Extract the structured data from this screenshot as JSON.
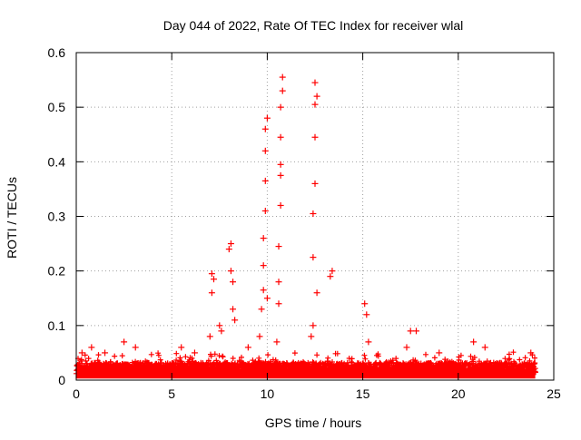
{
  "chart_data": {
    "type": "scatter",
    "title": "Day 044 of 2022, Rate Of TEC Index for receiver wlal",
    "xlabel": "GPS time / hours",
    "ylabel": "ROTI / TECUs",
    "xlim": [
      0,
      25
    ],
    "ylim": [
      0,
      0.6
    ],
    "x_ticks": [
      0,
      5,
      10,
      15,
      20,
      25
    ],
    "x_tick_labels": [
      "0",
      "5",
      "10",
      "15",
      "20",
      "25"
    ],
    "y_ticks": [
      0,
      0.1,
      0.2,
      0.3,
      0.4,
      0.5,
      0.6
    ],
    "y_tick_labels": [
      "0",
      "0.1",
      "0.2",
      "0.3",
      "0.4",
      "0.5",
      "0.6"
    ],
    "grid": true,
    "marker": "+",
    "color": "#ff0000",
    "series": [
      {
        "name": "ROTI",
        "notes": "Dense background band of ROTI values 0-0.04 TECU spans 0-24 h; listed points are the visible excursions above it.",
        "x": [
          0.3,
          0.8,
          1.5,
          2.5,
          3.1,
          5.5,
          6.2,
          7.0,
          7.1,
          7.1,
          7.2,
          7.5,
          7.6,
          8.0,
          8.1,
          8.1,
          8.2,
          8.2,
          8.3,
          9.0,
          9.6,
          9.7,
          9.8,
          9.8,
          9.8,
          9.9,
          9.9,
          9.9,
          9.9,
          10.0,
          10.0,
          10.5,
          10.6,
          10.6,
          10.6,
          10.7,
          10.7,
          10.7,
          10.7,
          10.7,
          10.8,
          10.8,
          12.3,
          12.4,
          12.4,
          12.4,
          12.5,
          12.5,
          12.5,
          12.5,
          12.6,
          12.6,
          13.3,
          13.4,
          15.1,
          15.2,
          15.3,
          17.3,
          17.5,
          17.8,
          19.0,
          20.8,
          21.4,
          23.8
        ],
        "y": [
          0.05,
          0.06,
          0.05,
          0.07,
          0.06,
          0.06,
          0.05,
          0.08,
          0.16,
          0.195,
          0.185,
          0.1,
          0.09,
          0.24,
          0.25,
          0.2,
          0.18,
          0.13,
          0.11,
          0.06,
          0.08,
          0.13,
          0.165,
          0.21,
          0.26,
          0.31,
          0.365,
          0.42,
          0.46,
          0.48,
          0.15,
          0.07,
          0.14,
          0.18,
          0.245,
          0.32,
          0.375,
          0.395,
          0.445,
          0.5,
          0.53,
          0.555,
          0.08,
          0.1,
          0.225,
          0.305,
          0.36,
          0.445,
          0.505,
          0.545,
          0.52,
          0.16,
          0.19,
          0.2,
          0.14,
          0.12,
          0.07,
          0.06,
          0.09,
          0.09,
          0.05,
          0.07,
          0.06,
          0.05
        ]
      }
    ]
  }
}
